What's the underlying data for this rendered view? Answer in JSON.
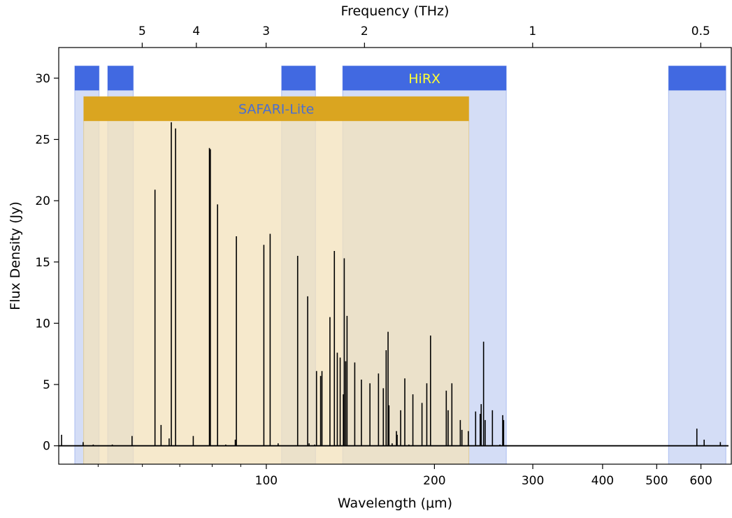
{
  "chart_data": {
    "type": "line",
    "xlabel": "Wavelength (μm)",
    "ylabel": "Flux Density (Jy)",
    "top_xlabel": "Frequency (THz)",
    "x_scale": "log",
    "xlim": [
      42.5,
      680
    ],
    "ylim": [
      -1.5,
      32.5
    ],
    "x_ticks": [
      100,
      200,
      300,
      400,
      500,
      600
    ],
    "x_tick_labels": [
      "100",
      "200",
      "300",
      "400",
      "500",
      "600"
    ],
    "y_ticks": [
      0,
      5,
      10,
      15,
      20,
      25,
      30
    ],
    "y_tick_labels": [
      "0",
      "5",
      "10",
      "15",
      "20",
      "25",
      "30"
    ],
    "top_ticks_thz": [
      5,
      4,
      3,
      2,
      1,
      0.5
    ],
    "top_tick_labels": [
      "5",
      "4",
      "3",
      "2",
      "1",
      "0.5"
    ],
    "grid": false,
    "bands": [
      {
        "name": "HiRX",
        "color": "#4169e1",
        "fill_color": "#c5d1f3",
        "y_range": [
          29,
          31
        ],
        "label_color": "#ffff33",
        "segments": [
          [
            45.4,
            50.2
          ],
          [
            52.0,
            57.8
          ],
          [
            106.5,
            122.5
          ],
          [
            137.0,
            269.0
          ],
          [
            525.0,
            665.0
          ]
        ]
      },
      {
        "name": "SAFARI-Lite",
        "color": "#daa520",
        "fill_color": "#f3e2bb",
        "y_range": [
          26.5,
          28.5
        ],
        "label_color": "#4b6fd0",
        "segments": [
          [
            47.1,
            230.5
          ]
        ]
      }
    ],
    "series": [
      {
        "color": "#000000",
        "peaks": [
          [
            43.0,
            0.9
          ],
          [
            47.0,
            0.3
          ],
          [
            49.0,
            0.1
          ],
          [
            53.0,
            0.1
          ],
          [
            57.5,
            0.8
          ],
          [
            63.2,
            20.9
          ],
          [
            64.8,
            1.7
          ],
          [
            67.0,
            0.6
          ],
          [
            67.6,
            26.4
          ],
          [
            68.8,
            25.9
          ],
          [
            74.0,
            0.8
          ],
          [
            79.1,
            24.3
          ],
          [
            79.4,
            24.2
          ],
          [
            81.8,
            19.7
          ],
          [
            84.6,
            0.1
          ],
          [
            88.0,
            0.5
          ],
          [
            88.4,
            17.1
          ],
          [
            99.0,
            16.4
          ],
          [
            101.6,
            17.3
          ],
          [
            105.0,
            0.2
          ],
          [
            113.8,
            15.5
          ],
          [
            118.6,
            12.2
          ],
          [
            119.3,
            0.2
          ],
          [
            122.1,
            0.1
          ],
          [
            123.0,
            6.1
          ],
          [
            125.1,
            5.7
          ],
          [
            125.8,
            6.1
          ],
          [
            130.0,
            10.5
          ],
          [
            132.4,
            15.9
          ],
          [
            134.0,
            7.6
          ],
          [
            135.6,
            7.2
          ],
          [
            137.4,
            4.2
          ],
          [
            137.9,
            15.3
          ],
          [
            138.7,
            6.9
          ],
          [
            139.5,
            10.6
          ],
          [
            144.0,
            6.8
          ],
          [
            148.0,
            5.4
          ],
          [
            153.3,
            5.1
          ],
          [
            158.8,
            5.9
          ],
          [
            162.0,
            4.7
          ],
          [
            163.9,
            7.8
          ],
          [
            165.2,
            9.3
          ],
          [
            165.8,
            3.3
          ],
          [
            168.0,
            0.2
          ],
          [
            171.0,
            1.2
          ],
          [
            171.5,
            0.9
          ],
          [
            174.0,
            2.9
          ],
          [
            177.0,
            5.5
          ],
          [
            180.0,
            0.1
          ],
          [
            183.0,
            4.2
          ],
          [
            190.0,
            3.5
          ],
          [
            193.8,
            5.1
          ],
          [
            196.8,
            9.0
          ],
          [
            210.0,
            4.5
          ],
          [
            211.6,
            2.9
          ],
          [
            214.9,
            5.1
          ],
          [
            222.5,
            2.1
          ],
          [
            224.0,
            1.3
          ],
          [
            230.0,
            1.2
          ],
          [
            237.0,
            2.8
          ],
          [
            241.5,
            2.6
          ],
          [
            242.5,
            3.4
          ],
          [
            244.9,
            8.5
          ],
          [
            246.5,
            2.1
          ],
          [
            254.0,
            2.9
          ],
          [
            262.0,
            0.1
          ],
          [
            265.0,
            2.5
          ],
          [
            266.0,
            2.1
          ],
          [
            590.0,
            1.4
          ],
          [
            608.0,
            0.5
          ],
          [
            650.0,
            0.3
          ]
        ]
      }
    ]
  }
}
